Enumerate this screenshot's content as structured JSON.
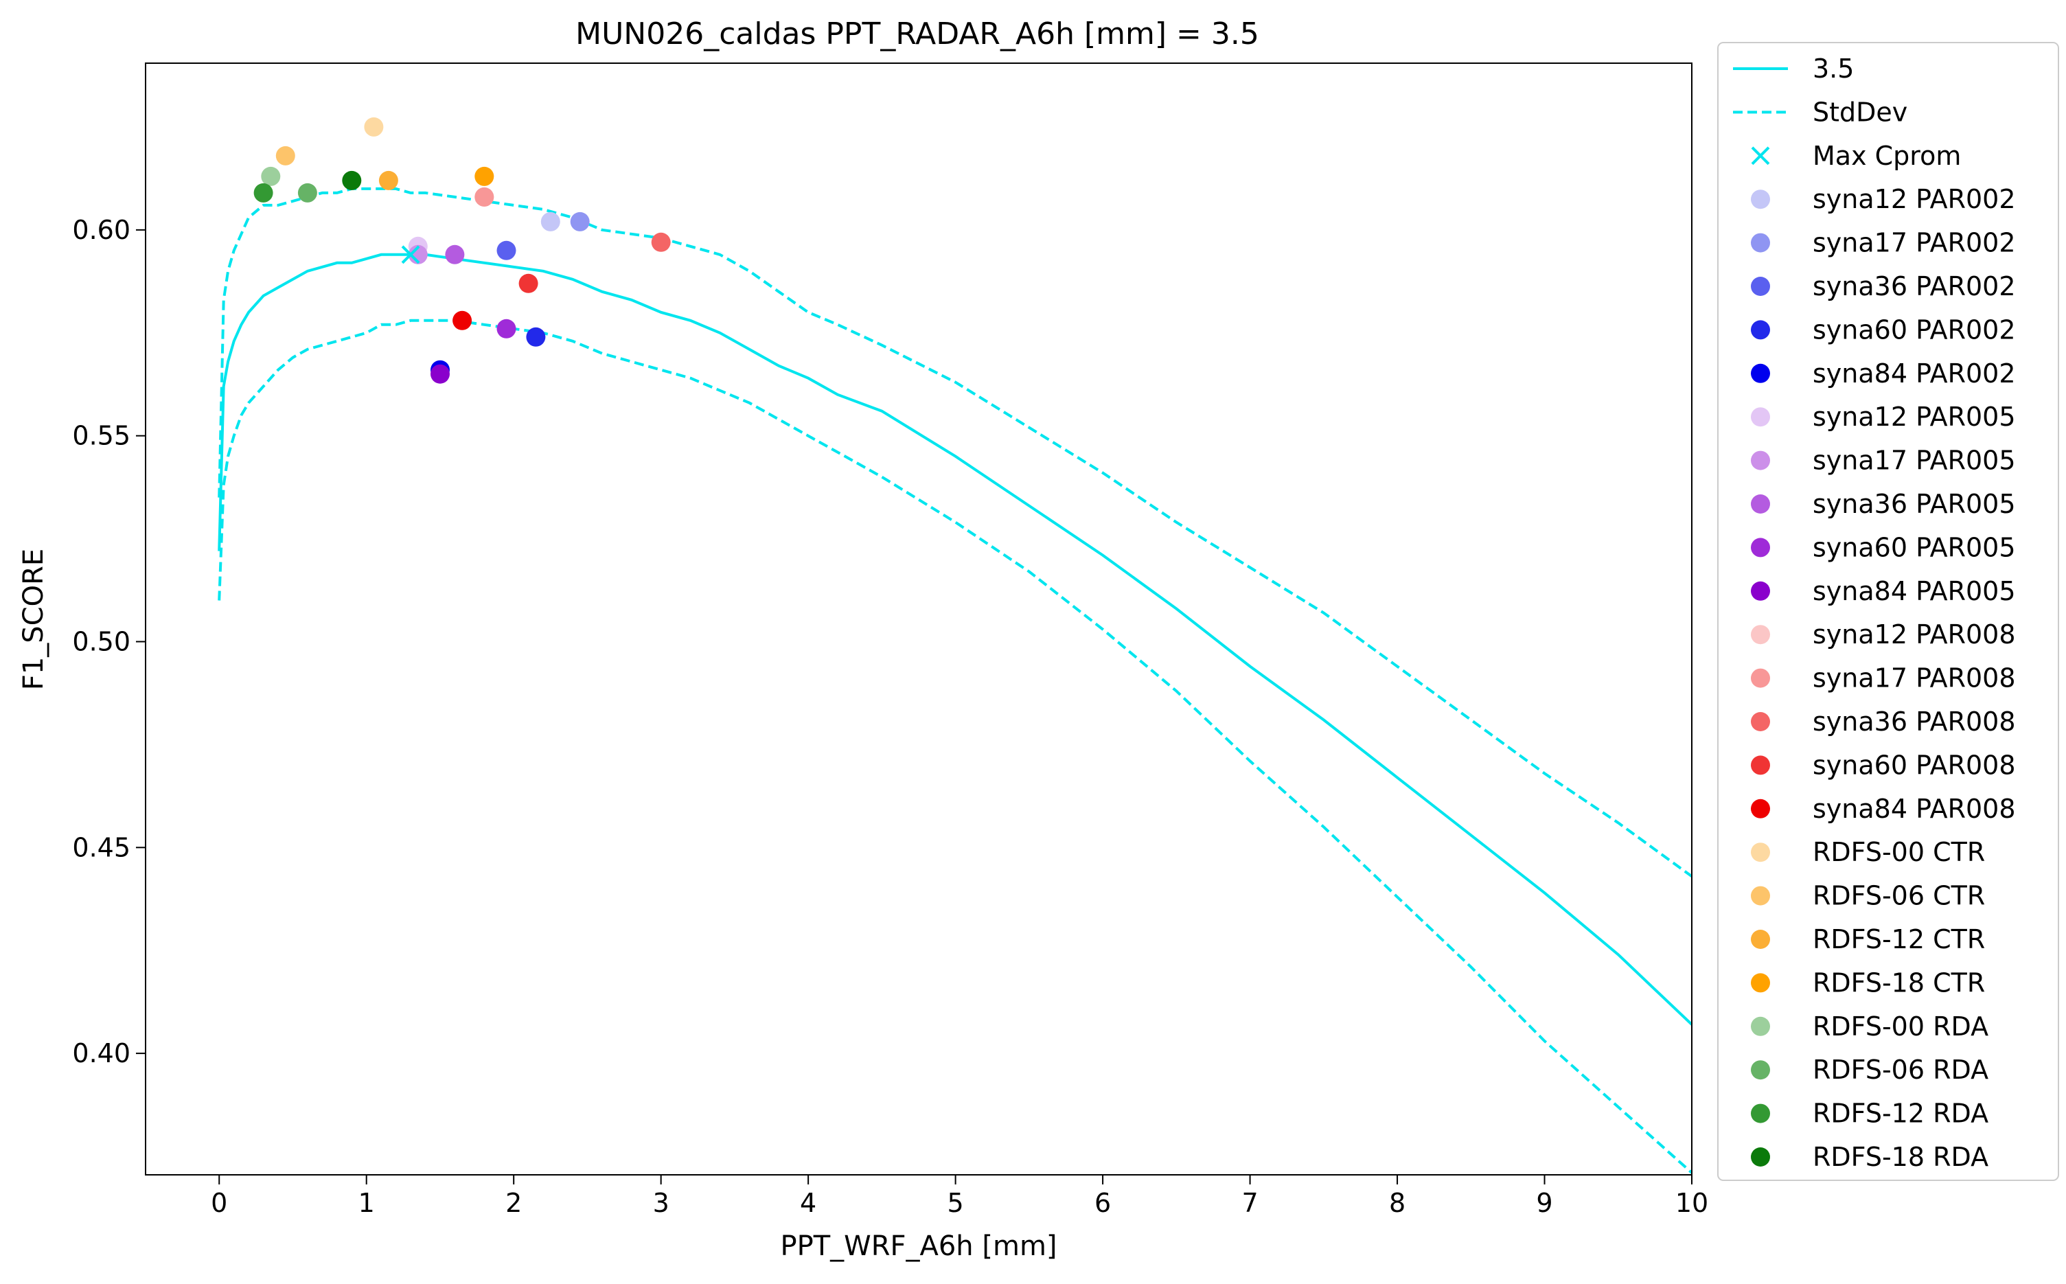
{
  "chart_data": {
    "type": "line",
    "title": "MUN026_caldas    PPT_RADAR_A6h [mm] = 3.5",
    "xlabel": "PPT_WRF_A6h [mm]",
    "ylabel": "F1_SCORE",
    "xlim": [
      -0.5,
      10
    ],
    "ylim": [
      0.3705,
      0.6405
    ],
    "xticks": [
      0,
      1,
      2,
      3,
      4,
      5,
      6,
      7,
      8,
      9,
      10
    ],
    "xtick_labels": [
      "0",
      "1",
      "2",
      "3",
      "4",
      "5",
      "6",
      "7",
      "8",
      "9",
      "10"
    ],
    "yticks": [
      0.4,
      0.45,
      0.5,
      0.55,
      0.6
    ],
    "ytick_labels": [
      "0.40",
      "0.45",
      "0.50",
      "0.55",
      "0.60"
    ],
    "grid": false,
    "legend_position": "outside-right",
    "line_color": "#00e5ee",
    "mean_line": {
      "name": "3.5",
      "x": [
        0.0,
        0.03,
        0.06,
        0.1,
        0.15,
        0.2,
        0.3,
        0.4,
        0.5,
        0.6,
        0.7,
        0.8,
        0.9,
        1.0,
        1.1,
        1.2,
        1.3,
        1.4,
        1.6,
        1.8,
        2.0,
        2.2,
        2.4,
        2.6,
        2.8,
        3.0,
        3.2,
        3.4,
        3.6,
        3.8,
        4.0,
        4.2,
        4.5,
        5.0,
        5.5,
        6.0,
        6.5,
        7.0,
        7.5,
        8.0,
        8.5,
        9.0,
        9.5,
        10.0
      ],
      "y": [
        0.522,
        0.562,
        0.568,
        0.573,
        0.577,
        0.58,
        0.584,
        0.586,
        0.588,
        0.59,
        0.591,
        0.592,
        0.592,
        0.593,
        0.594,
        0.594,
        0.594,
        0.594,
        0.593,
        0.592,
        0.591,
        0.59,
        0.588,
        0.585,
        0.583,
        0.58,
        0.578,
        0.575,
        0.571,
        0.567,
        0.564,
        0.56,
        0.556,
        0.545,
        0.533,
        0.521,
        0.508,
        0.494,
        0.481,
        0.467,
        0.453,
        0.439,
        0.424,
        0.407
      ]
    },
    "std_upper": {
      "name": "StdDev",
      "x": [
        0.0,
        0.03,
        0.06,
        0.1,
        0.15,
        0.2,
        0.3,
        0.4,
        0.5,
        0.6,
        0.7,
        0.8,
        0.9,
        1.0,
        1.1,
        1.2,
        1.3,
        1.4,
        1.6,
        1.8,
        2.0,
        2.2,
        2.4,
        2.6,
        2.8,
        3.0,
        3.2,
        3.4,
        3.6,
        3.8,
        4.0,
        4.2,
        4.5,
        5.0,
        5.5,
        6.0,
        6.5,
        7.0,
        7.5,
        8.0,
        8.5,
        9.0,
        9.5,
        10.0
      ],
      "y": [
        0.535,
        0.583,
        0.59,
        0.595,
        0.599,
        0.603,
        0.606,
        0.606,
        0.607,
        0.608,
        0.609,
        0.609,
        0.61,
        0.61,
        0.61,
        0.61,
        0.609,
        0.609,
        0.608,
        0.607,
        0.606,
        0.605,
        0.603,
        0.6,
        0.599,
        0.598,
        0.596,
        0.594,
        0.59,
        0.585,
        0.58,
        0.577,
        0.572,
        0.563,
        0.552,
        0.541,
        0.529,
        0.518,
        0.507,
        0.494,
        0.481,
        0.468,
        0.456,
        0.443
      ]
    },
    "std_lower": {
      "name": "StdDev",
      "x": [
        0.0,
        0.03,
        0.06,
        0.1,
        0.15,
        0.2,
        0.3,
        0.4,
        0.5,
        0.6,
        0.7,
        0.8,
        0.9,
        1.0,
        1.1,
        1.2,
        1.3,
        1.4,
        1.6,
        1.8,
        2.0,
        2.2,
        2.4,
        2.6,
        2.8,
        3.0,
        3.2,
        3.4,
        3.6,
        3.8,
        4.0,
        4.2,
        4.5,
        5.0,
        5.5,
        6.0,
        6.5,
        7.0,
        7.5,
        8.0,
        8.5,
        9.0,
        9.5,
        10.0
      ],
      "y": [
        0.51,
        0.538,
        0.545,
        0.55,
        0.555,
        0.558,
        0.562,
        0.566,
        0.569,
        0.571,
        0.572,
        0.573,
        0.574,
        0.575,
        0.577,
        0.577,
        0.578,
        0.578,
        0.578,
        0.577,
        0.576,
        0.575,
        0.573,
        0.57,
        0.568,
        0.566,
        0.564,
        0.561,
        0.558,
        0.554,
        0.55,
        0.546,
        0.54,
        0.529,
        0.517,
        0.503,
        0.488,
        0.471,
        0.455,
        0.438,
        0.421,
        0.403,
        0.387,
        0.371
      ]
    },
    "max_cprom": {
      "name": "Max Cprom",
      "x": 1.3,
      "y": 0.594
    },
    "series": [
      {
        "name": "syna12 PAR002",
        "color": "#c4c6f7",
        "x": 2.25,
        "y": 0.602
      },
      {
        "name": "syna17 PAR002",
        "color": "#8f95f2",
        "x": 2.45,
        "y": 0.602
      },
      {
        "name": "syna36 PAR002",
        "color": "#5a60ef",
        "x": 1.95,
        "y": 0.595
      },
      {
        "name": "syna60 PAR002",
        "color": "#2229ea",
        "x": 2.15,
        "y": 0.574
      },
      {
        "name": "syna84 PAR002",
        "color": "#0000ee",
        "x": 1.5,
        "y": 0.566
      },
      {
        "name": "syna12 PAR005",
        "color": "#e3c6f5",
        "x": 1.35,
        "y": 0.596
      },
      {
        "name": "syna17 PAR005",
        "color": "#cc8fe9",
        "x": 1.35,
        "y": 0.594
      },
      {
        "name": "syna36 PAR005",
        "color": "#b45be0",
        "x": 1.6,
        "y": 0.594
      },
      {
        "name": "syna60 PAR005",
        "color": "#9f2bd8",
        "x": 1.95,
        "y": 0.576
      },
      {
        "name": "syna84 PAR005",
        "color": "#8a00cc",
        "x": 1.5,
        "y": 0.565
      },
      {
        "name": "syna12 PAR008",
        "color": "#fbc6c6",
        "x": 1.8,
        "y": 0.608
      },
      {
        "name": "syna17 PAR008",
        "color": "#f89797",
        "x": 1.8,
        "y": 0.608
      },
      {
        "name": "syna36 PAR008",
        "color": "#f46565",
        "x": 3.0,
        "y": 0.597
      },
      {
        "name": "syna60 PAR008",
        "color": "#f03434",
        "x": 2.1,
        "y": 0.587
      },
      {
        "name": "syna84 PAR008",
        "color": "#ee0000",
        "x": 1.65,
        "y": 0.578
      },
      {
        "name": "RDFS-00 CTR",
        "color": "#fdd9a1",
        "x": 1.05,
        "y": 0.625
      },
      {
        "name": "RDFS-06 CTR",
        "color": "#fdc46a",
        "x": 0.45,
        "y": 0.618
      },
      {
        "name": "RDFS-12 CTR",
        "color": "#fbae35",
        "x": 1.15,
        "y": 0.612
      },
      {
        "name": "RDFS-18 CTR",
        "color": "#ffa200",
        "x": 1.8,
        "y": 0.613
      },
      {
        "name": "RDFS-00 RDA",
        "color": "#9ccf9c",
        "x": 0.35,
        "y": 0.613
      },
      {
        "name": "RDFS-06 RDA",
        "color": "#66b366",
        "x": 0.6,
        "y": 0.609
      },
      {
        "name": "RDFS-12 RDA",
        "color": "#339933",
        "x": 0.3,
        "y": 0.609
      },
      {
        "name": "RDFS-18 RDA",
        "color": "#0b7a0b",
        "x": 0.9,
        "y": 0.612
      }
    ]
  }
}
